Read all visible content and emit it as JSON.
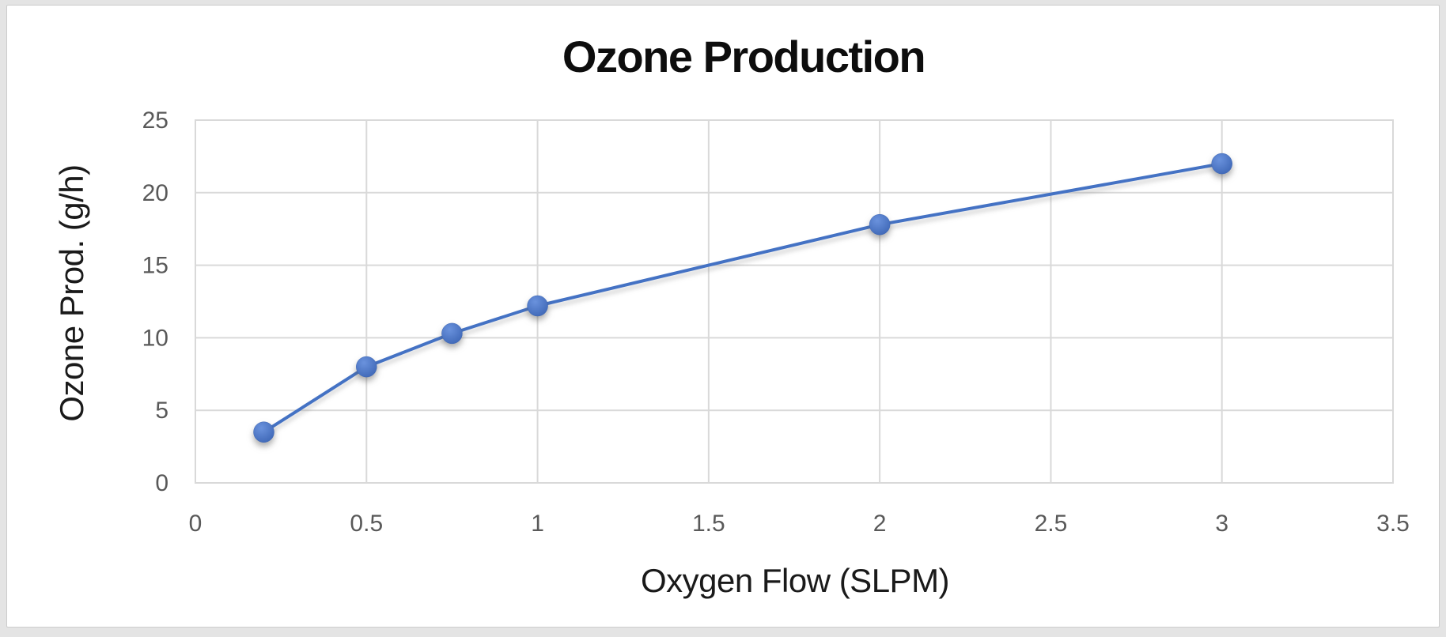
{
  "window": {
    "background": "#e4e4e4",
    "panel_background": "#ffffff",
    "panel_border": "#cccccc"
  },
  "chart_data": {
    "type": "line",
    "title": "Ozone Production",
    "xlabel": "Oxygen Flow (SLPM)",
    "ylabel": "Ozone Prod. (g/h)",
    "x": [
      0.2,
      0.5,
      0.75,
      1,
      2,
      3
    ],
    "y": [
      3.5,
      8,
      10.3,
      12.2,
      17.8,
      22
    ],
    "xlim": [
      0,
      3.5
    ],
    "ylim": [
      0,
      25
    ],
    "x_ticks": [
      "0",
      "0.5",
      "1",
      "1.5",
      "2",
      "2.5",
      "3",
      "3.5"
    ],
    "y_ticks": [
      "0",
      "5",
      "10",
      "15",
      "20",
      "25"
    ],
    "grid": true,
    "legend": "none",
    "colors": {
      "line": "#4472C4",
      "marker": "#4472C4",
      "marker_highlight": "#6a92dd",
      "marker_deep": "#3d66b5",
      "gridline": "#D9D9D9",
      "tick_label": "#595959",
      "axis_title": "#1a1a1a",
      "title": "#0d0d0d"
    }
  }
}
